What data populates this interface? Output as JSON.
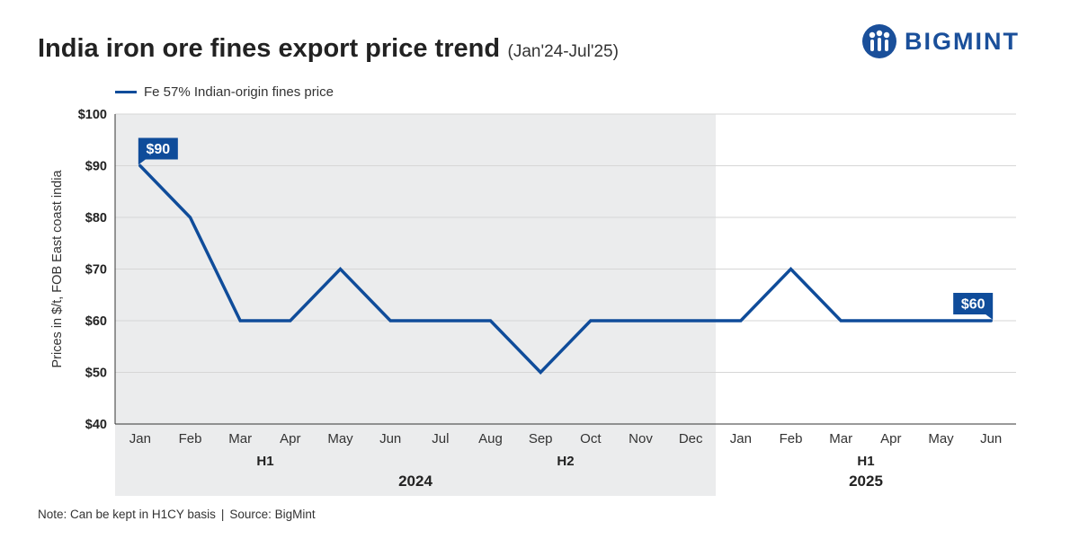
{
  "header": {
    "title": "India iron ore fines export price trend",
    "subtitle": "(Jan'24-Jul'25)"
  },
  "logo": {
    "text": "BIGMINT"
  },
  "footer": {
    "note": "Note: Can be kept in H1CY basis",
    "separator": "|",
    "source": "Source: BigMint"
  },
  "colors": {
    "line": "#0f4c9a",
    "shade": "#ebeced",
    "grid": "#d6d6d6",
    "brand": "#1a4f9a"
  },
  "chart_data": {
    "type": "line",
    "ylabel": "Prices in $/t, FOB East coast india",
    "ylim": [
      40,
      100
    ],
    "yticks": [
      "$40",
      "$50",
      "$60",
      "$70",
      "$80",
      "$90",
      "$100"
    ],
    "ytick_values": [
      40,
      50,
      60,
      70,
      80,
      90,
      100
    ],
    "grid": true,
    "legend_position": "top-left",
    "categories": [
      "Jan",
      "Feb",
      "Mar",
      "Apr",
      "May",
      "Jun",
      "Jul",
      "Aug",
      "Sep",
      "Oct",
      "Nov",
      "Dec",
      "Jan",
      "Feb",
      "Mar",
      "Apr",
      "May",
      "Jun"
    ],
    "series": [
      {
        "name": "Fe 57% Indian-origin fines price",
        "values": [
          90,
          80,
          60,
          60,
          70,
          60,
          60,
          60,
          50,
          60,
          60,
          60,
          60,
          70,
          60,
          60,
          60,
          60
        ]
      }
    ],
    "annotations": [
      {
        "index": 0,
        "text": "$90"
      },
      {
        "index": 17,
        "text": "$60"
      }
    ],
    "halves": [
      {
        "label": "H1",
        "start": 0,
        "end": 5
      },
      {
        "label": "H2",
        "start": 6,
        "end": 11
      },
      {
        "label": "H1",
        "start": 12,
        "end": 17
      }
    ],
    "years": [
      {
        "label": "2024",
        "start": 0,
        "end": 11,
        "shaded": true
      },
      {
        "label": "2025",
        "start": 12,
        "end": 17,
        "shaded": false
      }
    ]
  }
}
